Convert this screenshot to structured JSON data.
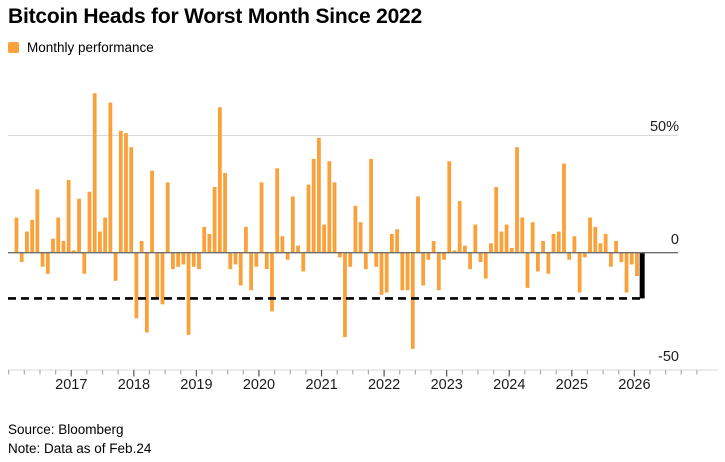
{
  "header": {
    "title": "Bitcoin Heads for Worst Month Since 2022"
  },
  "legend": {
    "label": "Monthly performance",
    "swatch_color": "#F9A13B"
  },
  "footer": {
    "source": "Source: Bloomberg",
    "note": "Note: Data as of Feb.24"
  },
  "colors": {
    "bar": "#F9A13B",
    "highlight_bar": "#000000",
    "zero_line": "#6E6E6E",
    "gridline": "#D9D9D9",
    "dashed_line": "#000000",
    "tick_major": "#555555",
    "tick_minor": "#ABABAB"
  },
  "y_axis": {
    "top_label": "50%",
    "zero_label": "0",
    "bottom_label": "-50"
  },
  "x_axis": {
    "years": [
      "2017",
      "2018",
      "2019",
      "2020",
      "2021",
      "2022",
      "2023",
      "2024",
      "2025",
      "2026"
    ]
  },
  "chart_data": {
    "type": "bar",
    "title": "Bitcoin Heads for Worst Month Since 2022",
    "series_name": "Monthly performance",
    "unit": "percent",
    "ylabel": "Monthly performance (%)",
    "ylim": [
      -50,
      70
    ],
    "grid": "horizontal",
    "legend_position": "top-left",
    "y_ticks": [
      {
        "value": 50,
        "label": "50%"
      },
      {
        "value": 0,
        "label": "0"
      },
      {
        "value": -50,
        "label": "-50"
      }
    ],
    "x_tick_years": [
      "2017",
      "2018",
      "2019",
      "2020",
      "2021",
      "2022",
      "2023",
      "2024",
      "2025",
      "2026"
    ],
    "dashed_line_value": -19.5,
    "highlight_last_bar": true,
    "highlight_note": "Feb 2026 month-to-date shown as black bar ending at dashed line",
    "x": [
      "2016-02",
      "2016-03",
      "2016-04",
      "2016-05",
      "2016-06",
      "2016-07",
      "2016-08",
      "2016-09",
      "2016-10",
      "2016-11",
      "2016-12",
      "2017-01",
      "2017-02",
      "2017-03",
      "2017-04",
      "2017-05",
      "2017-06",
      "2017-07",
      "2017-08",
      "2017-09",
      "2017-10",
      "2017-11",
      "2017-12",
      "2018-01",
      "2018-02",
      "2018-03",
      "2018-04",
      "2018-05",
      "2018-06",
      "2018-07",
      "2018-08",
      "2018-09",
      "2018-10",
      "2018-11",
      "2018-12",
      "2019-01",
      "2019-02",
      "2019-03",
      "2019-04",
      "2019-05",
      "2019-06",
      "2019-07",
      "2019-08",
      "2019-09",
      "2019-10",
      "2019-11",
      "2019-12",
      "2020-01",
      "2020-02",
      "2020-03",
      "2020-04",
      "2020-05",
      "2020-06",
      "2020-07",
      "2020-08",
      "2020-09",
      "2020-10",
      "2020-11",
      "2020-12",
      "2021-01",
      "2021-02",
      "2021-03",
      "2021-04",
      "2021-05",
      "2021-06",
      "2021-07",
      "2021-08",
      "2021-09",
      "2021-10",
      "2021-11",
      "2021-12",
      "2022-01",
      "2022-02",
      "2022-03",
      "2022-04",
      "2022-05",
      "2022-06",
      "2022-07",
      "2022-08",
      "2022-09",
      "2022-10",
      "2022-11",
      "2022-12",
      "2023-01",
      "2023-02",
      "2023-03",
      "2023-04",
      "2023-05",
      "2023-06",
      "2023-07",
      "2023-08",
      "2023-09",
      "2023-10",
      "2023-11",
      "2023-12",
      "2024-01",
      "2024-02",
      "2024-03",
      "2024-04",
      "2024-05",
      "2024-06",
      "2024-07",
      "2024-08",
      "2024-09",
      "2024-10",
      "2024-11",
      "2024-12",
      "2025-01",
      "2025-02",
      "2025-03",
      "2025-04",
      "2025-05",
      "2025-06",
      "2025-07",
      "2025-08",
      "2025-09",
      "2025-10",
      "2025-11",
      "2025-12",
      "2026-01",
      "2026-02"
    ],
    "values": [
      15,
      -4,
      9,
      14,
      27,
      -6,
      -9,
      6,
      15,
      5,
      31,
      1,
      23,
      -9,
      26,
      68,
      9,
      15,
      64,
      -12,
      52,
      51,
      45,
      -28,
      5,
      -34,
      35,
      -19,
      -22,
      30,
      -7,
      -6,
      -5,
      -35,
      -6,
      -7,
      11,
      8,
      28,
      62,
      34,
      -7,
      -5,
      -14,
      11,
      -16,
      -6,
      30,
      -7,
      -25,
      36,
      7,
      -3,
      24,
      3,
      -8,
      29,
      40,
      49,
      12,
      39,
      30,
      -2,
      -36,
      -6,
      20,
      13,
      -7,
      40,
      -6,
      -18,
      -17,
      8,
      10,
      -16,
      -16,
      -41,
      24,
      -14,
      -3,
      5,
      -16,
      -3,
      39,
      1,
      22,
      3,
      -7,
      12,
      -4,
      -11,
      4,
      28,
      9,
      12,
      2,
      45,
      15,
      -15,
      13,
      -8,
      5,
      -9,
      8,
      9,
      38,
      -3,
      7,
      -17,
      -2,
      15,
      11,
      4,
      8,
      -6,
      5,
      -4,
      -17,
      -5,
      -10,
      -19.5
    ]
  }
}
